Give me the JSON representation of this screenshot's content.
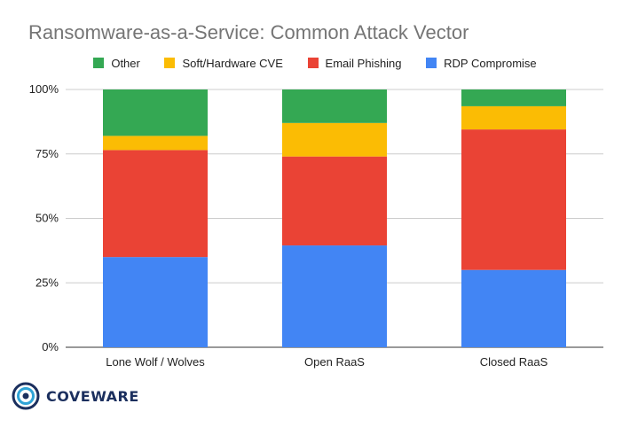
{
  "chart_data": {
    "type": "bar",
    "stacked": true,
    "title": "Ransomware-as-a-Service: Common Attack Vector",
    "categories": [
      "Lone Wolf / Wolves",
      "Open RaaS",
      "Closed RaaS"
    ],
    "series": [
      {
        "name": "RDP Compromise",
        "color": "#4285f4",
        "values": [
          35,
          39.5,
          30
        ]
      },
      {
        "name": "Email Phishing",
        "color": "#ea4335",
        "values": [
          41.5,
          34.5,
          54.5
        ]
      },
      {
        "name": "Soft/Hardware CVE",
        "color": "#fbbc04",
        "values": [
          5.5,
          13,
          9
        ]
      },
      {
        "name": "Other",
        "color": "#34a853",
        "values": [
          18,
          13,
          6.5
        ]
      }
    ],
    "legend_order": [
      "Other",
      "Soft/Hardware CVE",
      "Email Phishing",
      "RDP Compromise"
    ],
    "legend_position": "top",
    "ylim": [
      0,
      100
    ],
    "yticks": [
      "0%",
      "25%",
      "50%",
      "75%",
      "100%"
    ],
    "grid": true
  },
  "brand": {
    "name": "COVEWARE"
  },
  "colors": {
    "title": "#757575",
    "brand": "#1b2f5e",
    "grid": "#cccccc"
  }
}
